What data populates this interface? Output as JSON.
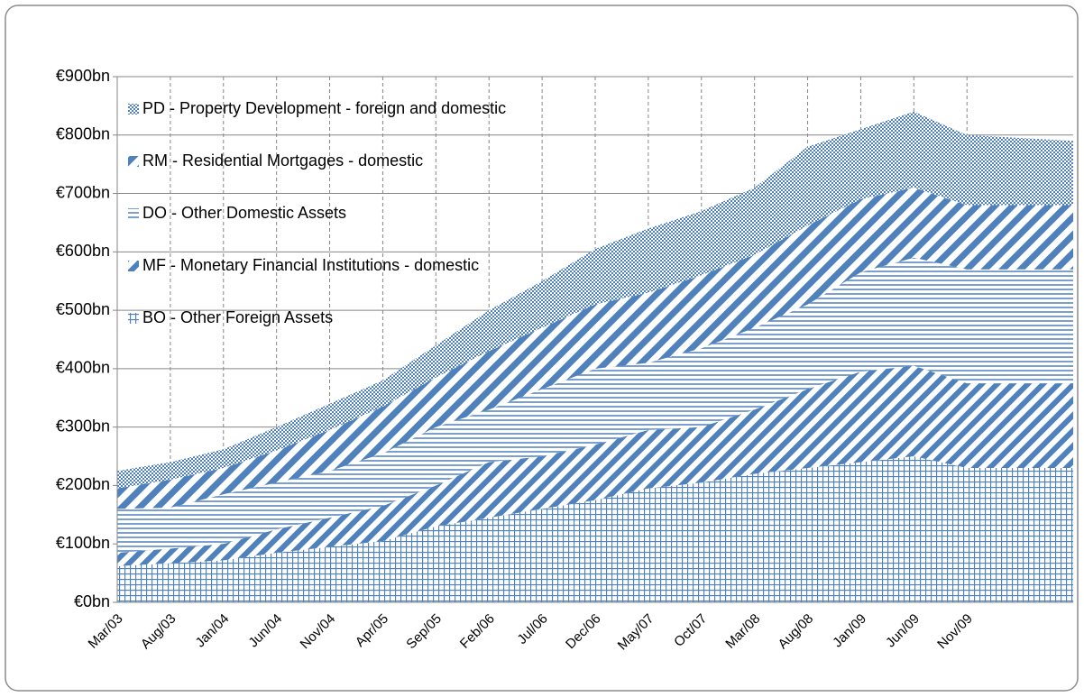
{
  "chart_data": {
    "type": "stacked-area",
    "categories": [
      "Mar/03",
      "Aug/03",
      "Jan/04",
      "Jun/04",
      "Nov/04",
      "Apr/05",
      "Sep/05",
      "Feb/06",
      "Jul/06",
      "Dec/06",
      "May/07",
      "Oct/07",
      "Mar/08",
      "Aug/08",
      "Jan/09",
      "Jun/09",
      "Nov/09",
      null,
      null
    ],
    "series": [
      {
        "name": "BO - Other Foreign Assets",
        "color": "#4f81bd",
        "pattern": "grid",
        "values": [
          62,
          67,
          72,
          85,
          95,
          105,
          130,
          145,
          160,
          175,
          195,
          205,
          220,
          230,
          240,
          250,
          230,
          230,
          230
        ]
      },
      {
        "name": "MF - Monetary Financial Institutions - domestic",
        "color": "#4f81bd",
        "pattern": "diagonal",
        "values": [
          23,
          25,
          28,
          40,
          50,
          60,
          70,
          95,
          90,
          95,
          100,
          95,
          110,
          135,
          155,
          155,
          145,
          145,
          145
        ]
      },
      {
        "name": "DO - Other Domestic Assets",
        "color": "#4f81bd",
        "pattern": "horizontal",
        "values": [
          75,
          70,
          85,
          80,
          80,
          90,
          100,
          90,
          115,
          130,
          115,
          135,
          140,
          145,
          170,
          185,
          195,
          195,
          195
        ]
      },
      {
        "name": "RM - Residential Mortgages - domestic",
        "color": "#4f81bd",
        "pattern": "diagonal-wide",
        "values": [
          35,
          48,
          45,
          55,
          70,
          80,
          85,
          100,
          105,
          110,
          120,
          125,
          125,
          135,
          125,
          120,
          110,
          110,
          110
        ]
      },
      {
        "name": "PD - Property Development - foreign and domestic",
        "color": "#4f81bd",
        "pattern": "dots",
        "values": [
          30,
          30,
          32,
          40,
          45,
          45,
          55,
          70,
          80,
          95,
          110,
          110,
          115,
          135,
          120,
          130,
          120,
          115,
          110
        ]
      }
    ],
    "ylim": [
      0,
      900
    ],
    "yticks": [
      {
        "value": 0,
        "label": "€0bn"
      },
      {
        "value": 100,
        "label": "€100bn"
      },
      {
        "value": 200,
        "label": "€200bn"
      },
      {
        "value": 300,
        "label": "€300bn"
      },
      {
        "value": 400,
        "label": "€400bn"
      },
      {
        "value": 500,
        "label": "€500bn"
      },
      {
        "value": 600,
        "label": "€600bn"
      },
      {
        "value": 700,
        "label": "€700bn"
      },
      {
        "value": 800,
        "label": "€800bn"
      },
      {
        "value": 900,
        "label": "€900bn"
      }
    ],
    "grid": true,
    "legend": "top-left"
  }
}
